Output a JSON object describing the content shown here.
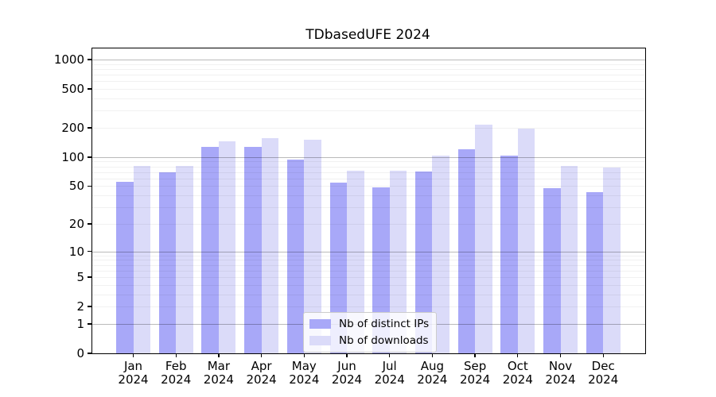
{
  "title": "TDbasedUFE 2024",
  "legend": {
    "items": [
      {
        "label": "Nb of distinct IPs",
        "color": "#a8a8f8"
      },
      {
        "label": "Nb of downloads",
        "color": "#dbdbf9"
      }
    ]
  },
  "chart_data": {
    "type": "bar",
    "title": "TDbasedUFE 2024",
    "categories": [
      "Jan 2024",
      "Feb 2024",
      "Mar 2024",
      "Apr 2024",
      "May 2024",
      "Jun 2024",
      "Jul 2024",
      "Aug 2024",
      "Sep 2024",
      "Oct 2024",
      "Nov 2024",
      "Dec 2024"
    ],
    "month_labels": [
      "Jan",
      "Feb",
      "Mar",
      "Apr",
      "May",
      "Jun",
      "Jul",
      "Aug",
      "Sep",
      "Oct",
      "Nov",
      "Dec"
    ],
    "year_label": "2024",
    "series": [
      {
        "name": "Nb of distinct IPs",
        "color": "#a8a8f8",
        "values": [
          55,
          70,
          128,
          128,
          95,
          54,
          49,
          71,
          120,
          103,
          48,
          43
        ]
      },
      {
        "name": "Nb of downloads",
        "color": "#dbdbf9",
        "values": [
          81,
          81,
          146,
          158,
          151,
          72,
          73,
          104,
          215,
          197,
          81,
          78
        ]
      }
    ],
    "xlabel": "",
    "ylabel": "",
    "yscale": "log1p",
    "y_ticks": [
      0,
      1,
      2,
      5,
      10,
      20,
      50,
      100,
      200,
      500,
      1000
    ],
    "grid_major_values": [
      1,
      10,
      100,
      1000
    ],
    "ylim": [
      0,
      1300
    ],
    "legend_position": "bottom-center-inside",
    "grid": "on",
    "colors": {
      "background": "#ffffff",
      "frame": "#000000",
      "grid_major": "#b9b9b9",
      "grid_minor": "#ededed"
    }
  }
}
